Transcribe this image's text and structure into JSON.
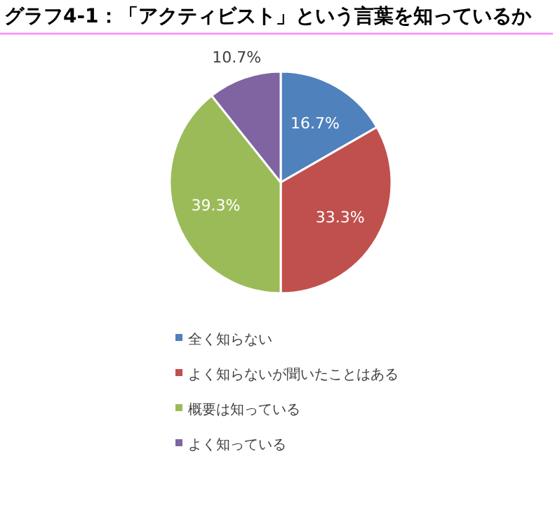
{
  "chart_data": {
    "type": "pie",
    "title": "グラフ4-1：「アクティビスト」という言葉を知っているか",
    "categories": [
      "全く知らない",
      "よく知らないが聞いたことはある",
      "概要は知っている",
      "よく知っている"
    ],
    "values": [
      16.7,
      33.3,
      39.3,
      10.7
    ],
    "value_labels": [
      "16.7%",
      "33.3%",
      "39.3%",
      "10.7%"
    ],
    "colors": [
      "#4f81bd",
      "#c0504d",
      "#9bbb59",
      "#8064a2"
    ],
    "legend": "bottom"
  }
}
